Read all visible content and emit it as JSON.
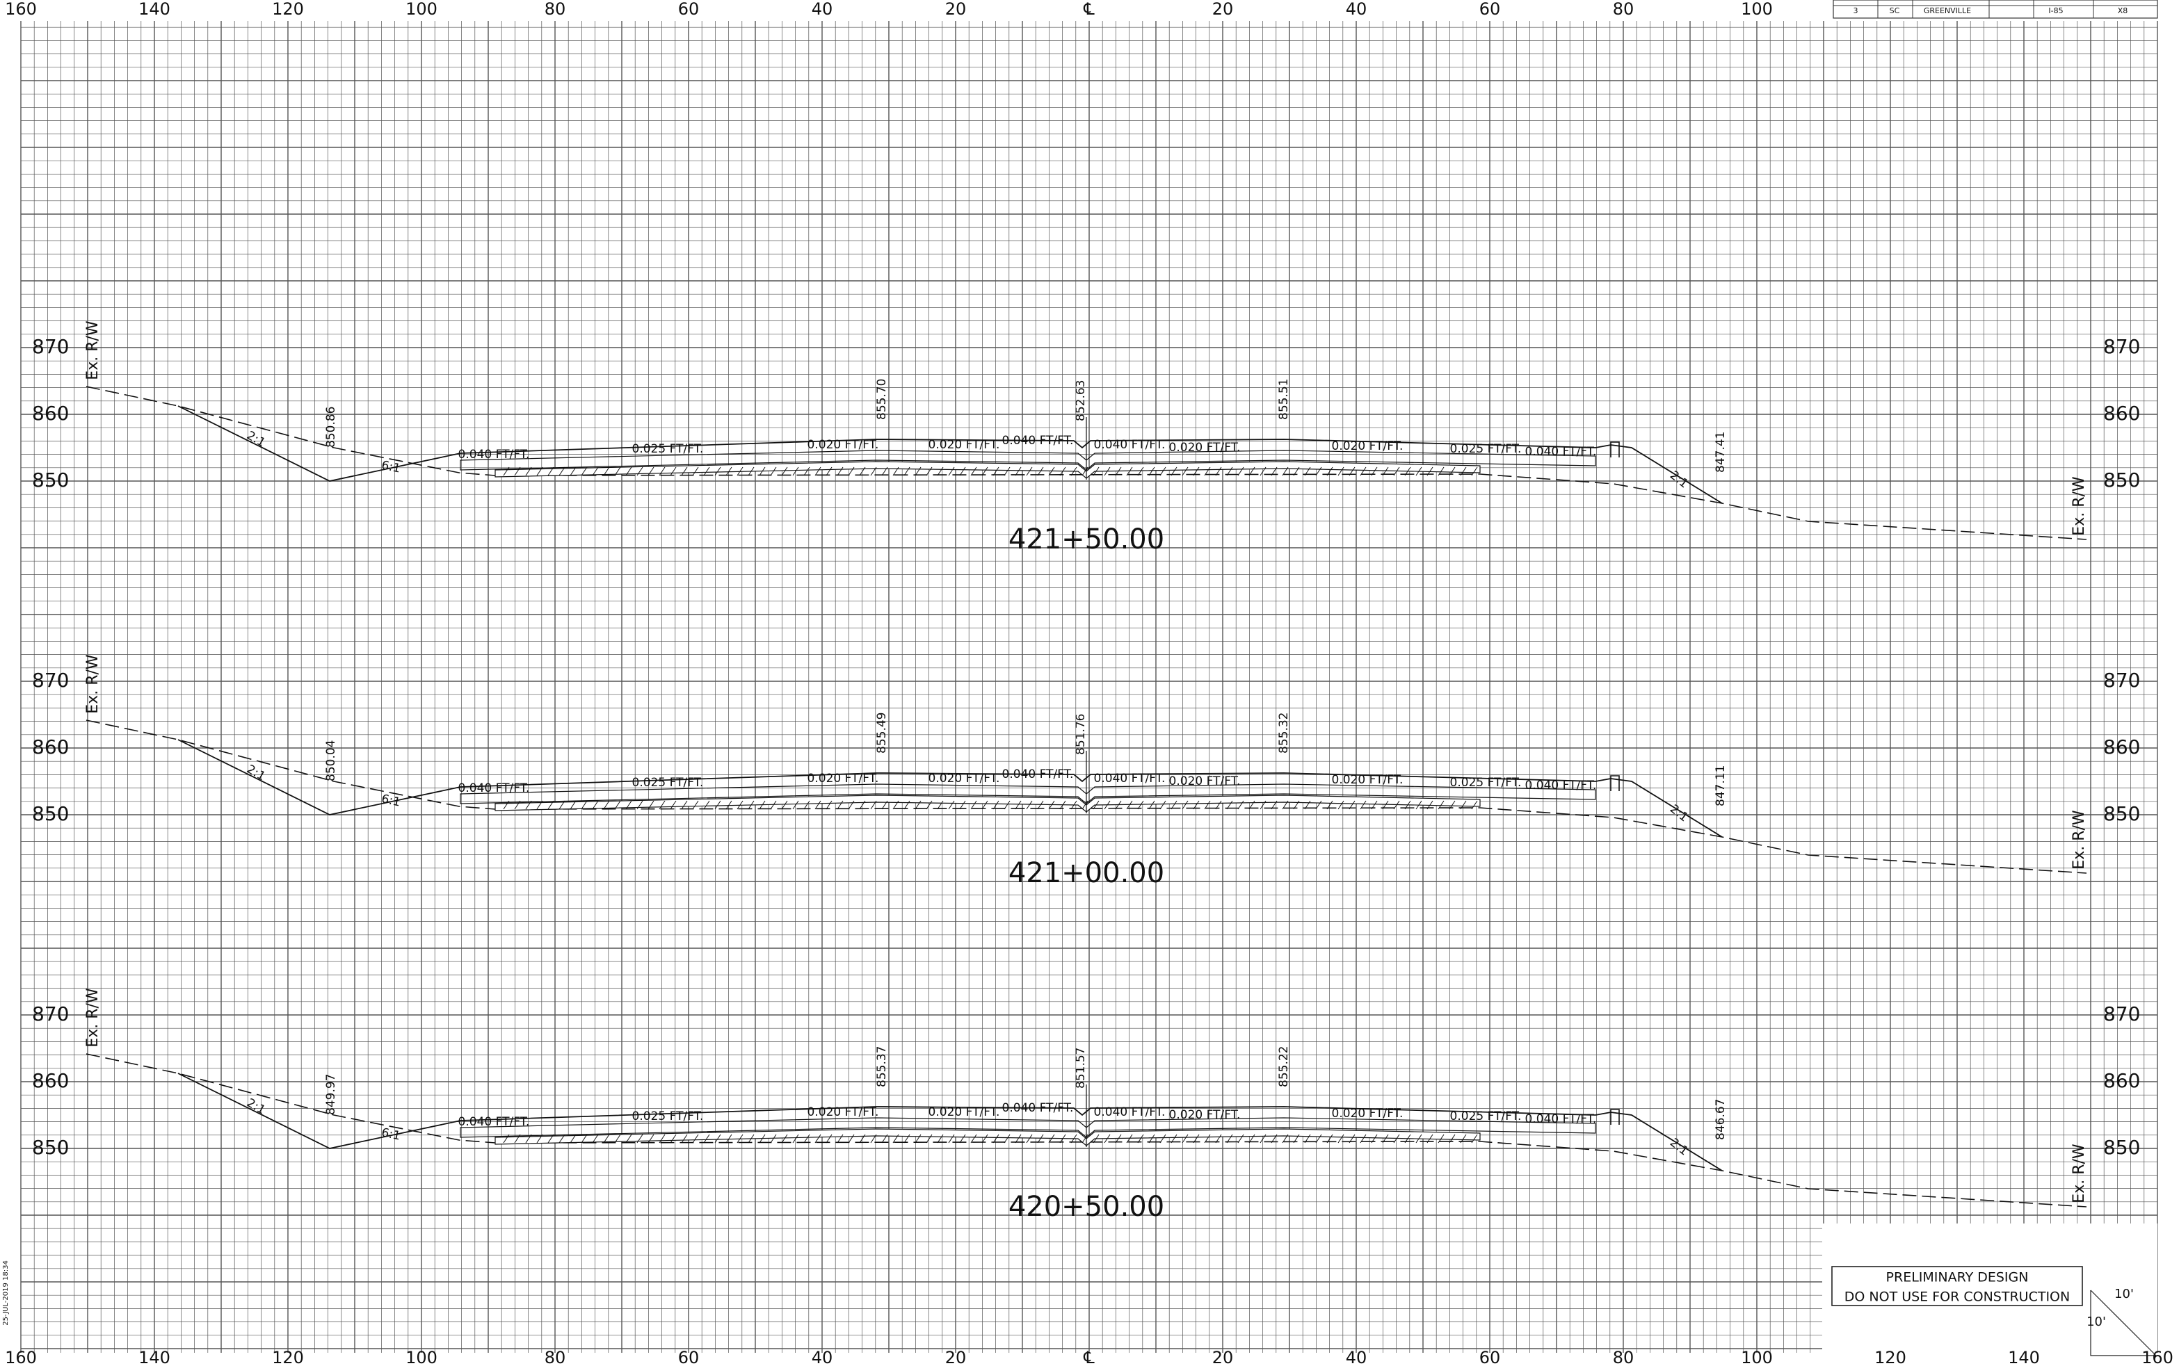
{
  "axis": {
    "top": [
      "160",
      "140",
      "120",
      "100",
      "80",
      "60",
      "40",
      "20",
      "℄",
      "20",
      "40",
      "60",
      "80",
      "100"
    ],
    "bottom": [
      "160",
      "140",
      "120",
      "100",
      "80",
      "60",
      "40",
      "20",
      "℄",
      "20",
      "40",
      "60",
      "80",
      "100",
      "120",
      "140",
      "160"
    ]
  },
  "sections": [
    {
      "station": "421+50.00",
      "elevations_left": [
        "870",
        "860",
        "850"
      ],
      "elevations_right": [
        "870",
        "860",
        "850"
      ],
      "ex_rw_left": "Ex. R/W",
      "ex_rw_right": "Ex. R/W",
      "labels": [
        "2:1",
        "850.86",
        "6:1",
        "0.040 FT/FT.",
        "0.025 FT/FT.",
        "0.020 FT/FT.",
        "855.70",
        "0.020 FT/FT.",
        "0.040 FT/FT.",
        "852.63",
        "0.040 FT/FT.",
        "0.020 FT/FT.",
        "855.51",
        "0.020 FT/FT.",
        "0.025 FT/FT.",
        "0.040 FT/FT.",
        "2:1",
        "847.41"
      ]
    },
    {
      "station": "421+00.00",
      "elevations_left": [
        "870",
        "860",
        "850"
      ],
      "elevations_right": [
        "870",
        "860",
        "850"
      ],
      "ex_rw_left": "Ex. R/W",
      "ex_rw_right": "Ex. R/W",
      "labels": [
        "2:1",
        "850.04",
        "6:1",
        "0.040 FT/FT.",
        "0.025 FT/FT.",
        "0.020 FT/FT.",
        "855.49",
        "0.020 FT/FT.",
        "0.040 FT/FT.",
        "851.76",
        "0.040 FT/FT.",
        "0.020 FT/FT.",
        "855.32",
        "0.020 FT/FT.",
        "0.025 FT/FT.",
        "0.040 FT/FT.",
        "2:1",
        "847.11"
      ]
    },
    {
      "station": "420+50.00",
      "elevations_left": [
        "870",
        "860",
        "850"
      ],
      "elevations_right": [
        "870",
        "860",
        "850"
      ],
      "ex_rw_left": "Ex. R/W",
      "ex_rw_right": "Ex. R/W",
      "labels": [
        "2:1",
        "849.97",
        "6:1",
        "0.040 FT/FT.",
        "0.025 FT/FT.",
        "0.020 FT/FT.",
        "855.37",
        "0.020 FT/FT.",
        "0.040 FT/FT.",
        "851.57",
        "0.040 FT/FT.",
        "0.020 FT/FT.",
        "855.22",
        "0.020 FT/FT.",
        "0.025 FT/FT.",
        "0.040 FT/FT.",
        "2:1",
        "846.67"
      ]
    }
  ],
  "title_block": {
    "cells": [
      "3",
      "SC",
      "GREENVILLE",
      "I-85",
      "X8"
    ]
  },
  "stamp": {
    "line1": "PRELIMINARY DESIGN",
    "line2": "DO NOT USE FOR CONSTRUCTION"
  },
  "scale": {
    "horizontal": "10'",
    "vertical": "10'"
  },
  "plot_info": "25-JUL-2019 18:34"
}
